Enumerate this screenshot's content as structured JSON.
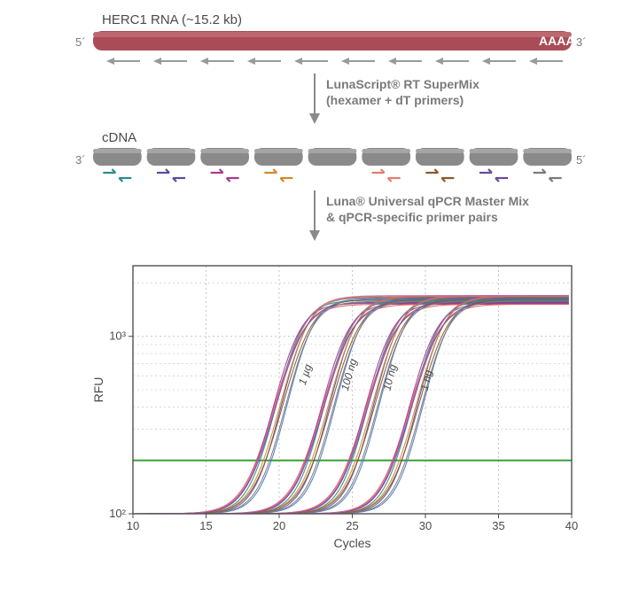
{
  "rna": {
    "title": "HERC1 RNA (~15.2 kb)",
    "left": "5´",
    "right": "3´",
    "tail": "AAAA",
    "bar_color": "#a94c58",
    "bar_highlight": "#bd6871",
    "arrow_color": "#9a9a9a"
  },
  "step1": {
    "line1": "LunaScript® RT SuperMix",
    "line2": "(hexamer + dT primers)"
  },
  "cdna": {
    "title": "cDNA",
    "left": "3´",
    "right": "5´",
    "seg_color": "#8a8a8a",
    "seg_highlight": "#a5a5a5",
    "primer_colors": [
      "#2a8c8c",
      "#5a4aa0",
      "#a83a8a",
      "#d18a2a",
      "#e87a6a",
      "#8a5a2a",
      "#6a4a9a",
      "#7a7a7a"
    ]
  },
  "step2": {
    "line1": "Luna® Universal qPCR Master Mix",
    "line2": "& qPCR-specific primer pairs"
  },
  "chart": {
    "xlabel": "Cycles",
    "ylabel": "RFU",
    "xlim": [
      10,
      40
    ],
    "ylim": [
      100,
      2500
    ],
    "xticks": [
      10,
      15,
      20,
      25,
      30,
      35,
      40
    ],
    "yticks": [
      100,
      1000
    ],
    "ytick_labels": [
      "10²",
      "10³"
    ],
    "threshold_y": 200,
    "threshold_color": "#3aa03a",
    "grid_color": "#c0c0c0",
    "background_color": "#ffffff",
    "axis_color": "#4a4a4a",
    "groups": [
      {
        "label": "1 µg",
        "ct": 21.2,
        "x_label": 22,
        "y_label": 600,
        "rot": -72
      },
      {
        "label": "100 ng",
        "ct": 24.5,
        "x_label": 25,
        "y_label": 600,
        "rot": -74
      },
      {
        "label": "10 ng",
        "ct": 27.5,
        "x_label": 27.8,
        "y_label": 580,
        "rot": -76
      },
      {
        "label": "1 ng",
        "ct": 30.5,
        "x_label": 30.3,
        "y_label": 560,
        "rot": -78
      }
    ],
    "curve_colors": [
      "#d85a5a",
      "#5a4aa0",
      "#2a8c8c",
      "#a83a8a",
      "#d18a2a",
      "#8a5a2a",
      "#6a4a9a",
      "#c060a0",
      "#4a7ac0",
      "#7a7a7a"
    ],
    "plateau": 1650
  }
}
